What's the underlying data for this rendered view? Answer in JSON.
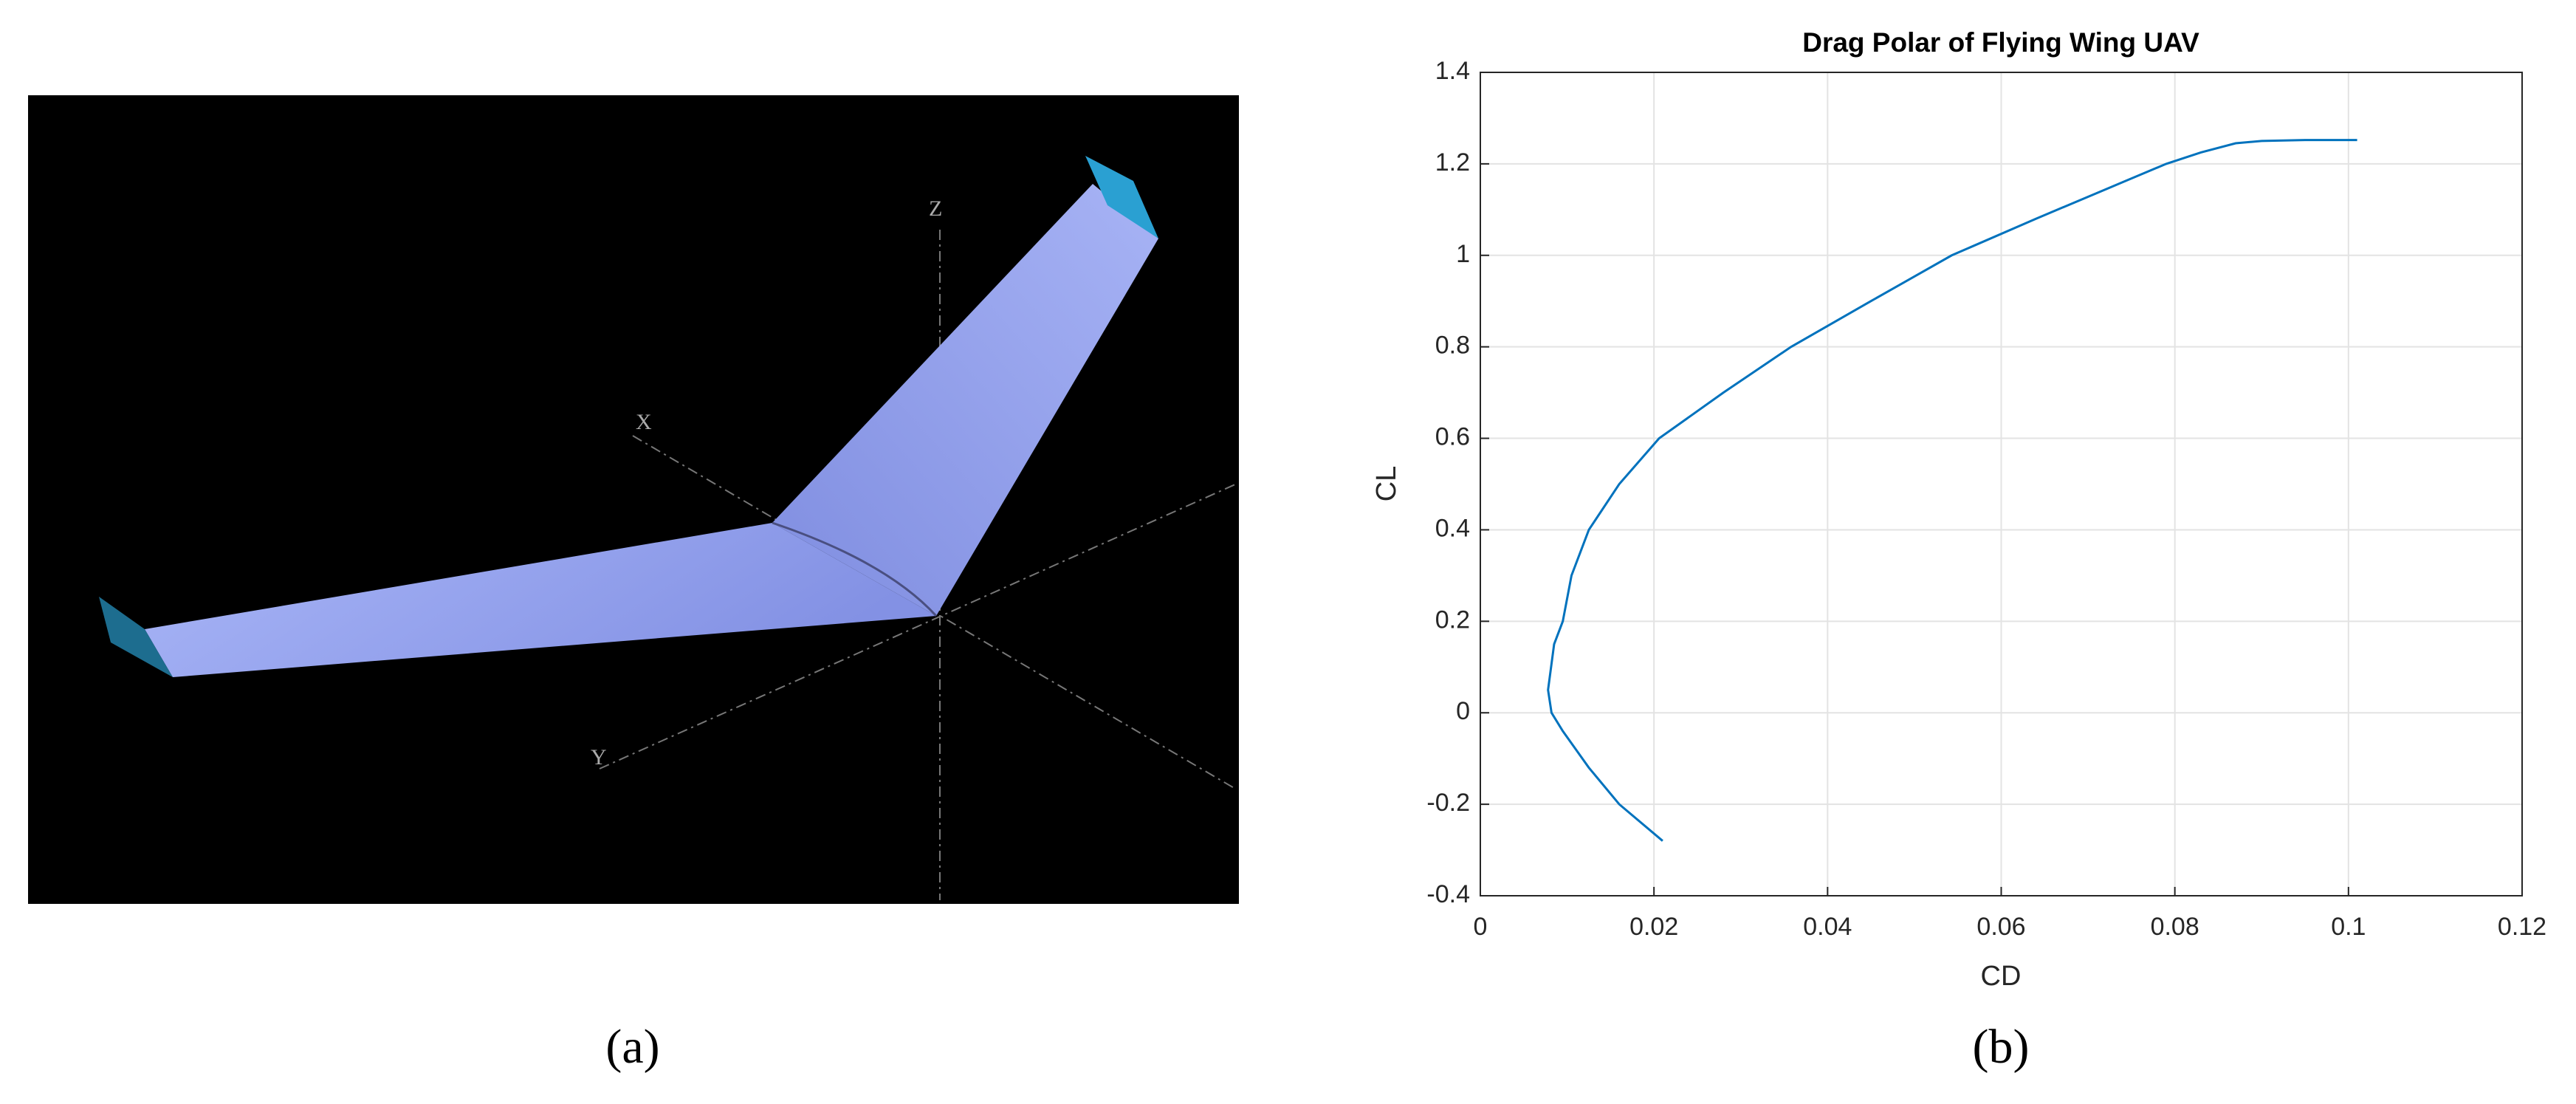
{
  "figure": {
    "captions": [
      "(a)",
      "(b)"
    ],
    "render_axis_labels": [
      "X",
      "Y",
      "Z"
    ]
  },
  "chart_data": {
    "type": "line",
    "title": "Drag Polar of Flying Wing UAV",
    "x_label": "CD",
    "y_label": "CL",
    "xlim": [
      0,
      0.12
    ],
    "ylim": [
      -0.4,
      1.4
    ],
    "xticks": [
      0,
      0.02,
      0.04,
      0.06,
      0.08,
      0.1,
      0.12
    ],
    "yticks": [
      -0.4,
      -0.2,
      0,
      0.2,
      0.4,
      0.6,
      0.8,
      1,
      1.2,
      1.4
    ],
    "grid": true,
    "x": [
      0.021,
      0.016,
      0.0125,
      0.0095,
      0.0082,
      0.0078,
      0.0085,
      0.0095,
      0.0105,
      0.0125,
      0.016,
      0.0206,
      0.028,
      0.0358,
      0.045,
      0.0543,
      0.064,
      0.074,
      0.079,
      0.083,
      0.087,
      0.09,
      0.095,
      0.101
    ],
    "series": [
      {
        "color": "#0072bd",
        "values": [
          -0.28,
          -0.2,
          -0.12,
          -0.04,
          0,
          0.05,
          0.15,
          0.2,
          0.3,
          0.4,
          0.5,
          0.6,
          0.7,
          0.8,
          0.9,
          1.0,
          1.08,
          1.16,
          1.2,
          1.225,
          1.245,
          1.25,
          1.252,
          1.252
        ]
      }
    ]
  }
}
